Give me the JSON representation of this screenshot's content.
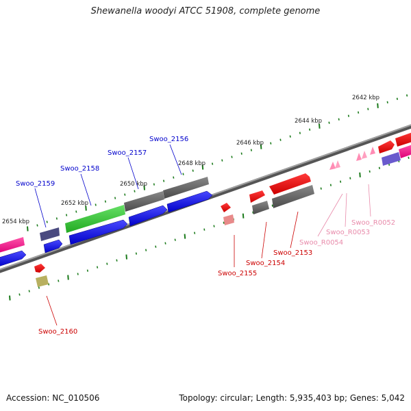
{
  "title": "Shewanella woodyi ATCC 51908, complete genome",
  "footer": {
    "accession": "Accession: NC_010506",
    "summary": "Topology: circular; Length: 5,935,403 bp; Genes: 5,042"
  },
  "ruler_labels": [
    {
      "id": "2642",
      "text": "2642 kbp"
    },
    {
      "id": "2644",
      "text": "2644 kbp"
    },
    {
      "id": "2646",
      "text": "2646 kbp"
    },
    {
      "id": "2648",
      "text": "2648 kbp"
    },
    {
      "id": "2650",
      "text": "2650 kbp"
    },
    {
      "id": "2652",
      "text": "2652 kbp"
    },
    {
      "id": "2654",
      "text": "2654 kbp"
    }
  ],
  "gene_labels": [
    {
      "id": "Swoo_2159",
      "text": "Swoo_2159",
      "color": "#0000cc"
    },
    {
      "id": "Swoo_2158",
      "text": "Swoo_2158",
      "color": "#0000cc"
    },
    {
      "id": "Swoo_2157",
      "text": "Swoo_2157",
      "color": "#0000cc"
    },
    {
      "id": "Swoo_2156",
      "text": "Swoo_2156",
      "color": "#0000cc"
    },
    {
      "id": "Swoo_2160",
      "text": "Swoo_2160",
      "color": "#cc0000"
    },
    {
      "id": "Swoo_2155",
      "text": "Swoo_2155",
      "color": "#cc0000"
    },
    {
      "id": "Swoo_2154",
      "text": "Swoo_2154",
      "color": "#cc0000"
    },
    {
      "id": "Swoo_2153",
      "text": "Swoo_2153",
      "color": "#cc0000"
    },
    {
      "id": "Swoo_R0054",
      "text": "Swoo_R0054",
      "color": "#e88aaa"
    },
    {
      "id": "Swoo_R0053",
      "text": "Swoo_R0053",
      "color": "#e88aaa"
    },
    {
      "id": "Swoo_R0052",
      "text": "Swoo_R0052",
      "color": "#e88aaa"
    }
  ],
  "colors": {
    "backbone": "#7f7f7f",
    "tick": "#1a7a1a",
    "forward_blue": "#0000ee",
    "reverse_red": "#ee0000",
    "grey_feature": "#666666",
    "green_feature": "#33cc33",
    "magenta_feature": "#ff1a8c",
    "rna_pink": "#ff8cb4",
    "olive_feature": "#b8b060",
    "slate_feature": "#4a4a80",
    "violet_feature": "#6a5acd"
  }
}
